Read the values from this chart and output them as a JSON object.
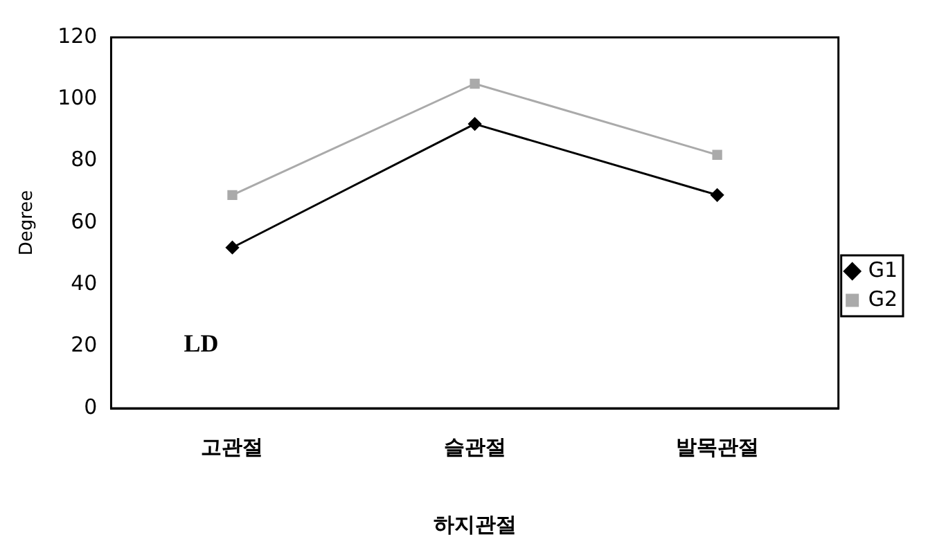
{
  "chart_data": {
    "type": "line",
    "xlabel": "하지관절",
    "ylabel": "Degree",
    "categories": [
      "고관절",
      "슬관절",
      "발목관절"
    ],
    "series": [
      {
        "name": "G1",
        "color": "#000000",
        "marker": "diamond",
        "values": [
          52,
          92,
          69
        ]
      },
      {
        "name": "G2",
        "color": "#aaaaaa",
        "marker": "square",
        "values": [
          69,
          105,
          82
        ]
      }
    ],
    "ylim": [
      0,
      120
    ],
    "yticks": [
      0,
      20,
      40,
      60,
      80,
      100,
      120
    ],
    "grid": false,
    "legend": "right",
    "annotations": [
      {
        "text": "LD"
      }
    ]
  }
}
